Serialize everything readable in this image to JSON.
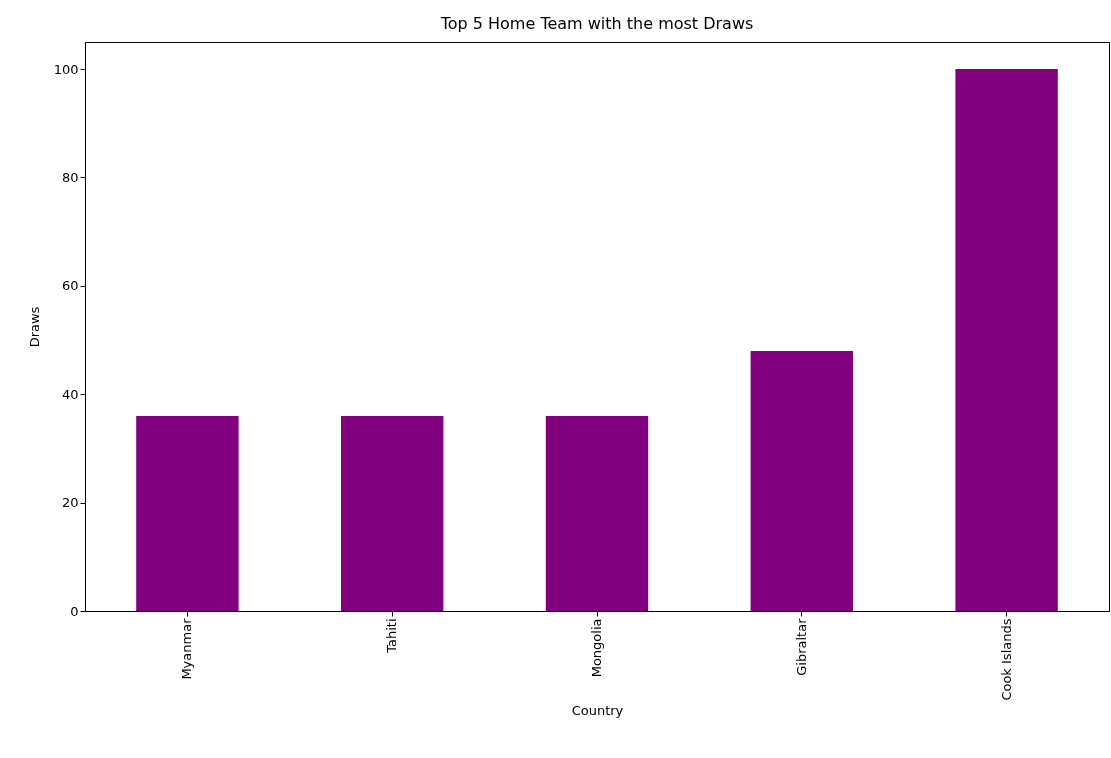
{
  "chart_data": {
    "type": "bar",
    "title": "Top 5 Home Team with the most Draws",
    "xlabel": "Country",
    "ylabel": "Draws",
    "categories": [
      "Myanmar",
      "Tahiti",
      "Mongolia",
      "Gibraltar",
      "Cook Islands"
    ],
    "values": [
      36,
      36,
      36,
      48,
      100
    ],
    "color": "#800080",
    "ylim": [
      0,
      105
    ],
    "yticks": [
      0,
      20,
      40,
      60,
      80,
      100
    ]
  }
}
